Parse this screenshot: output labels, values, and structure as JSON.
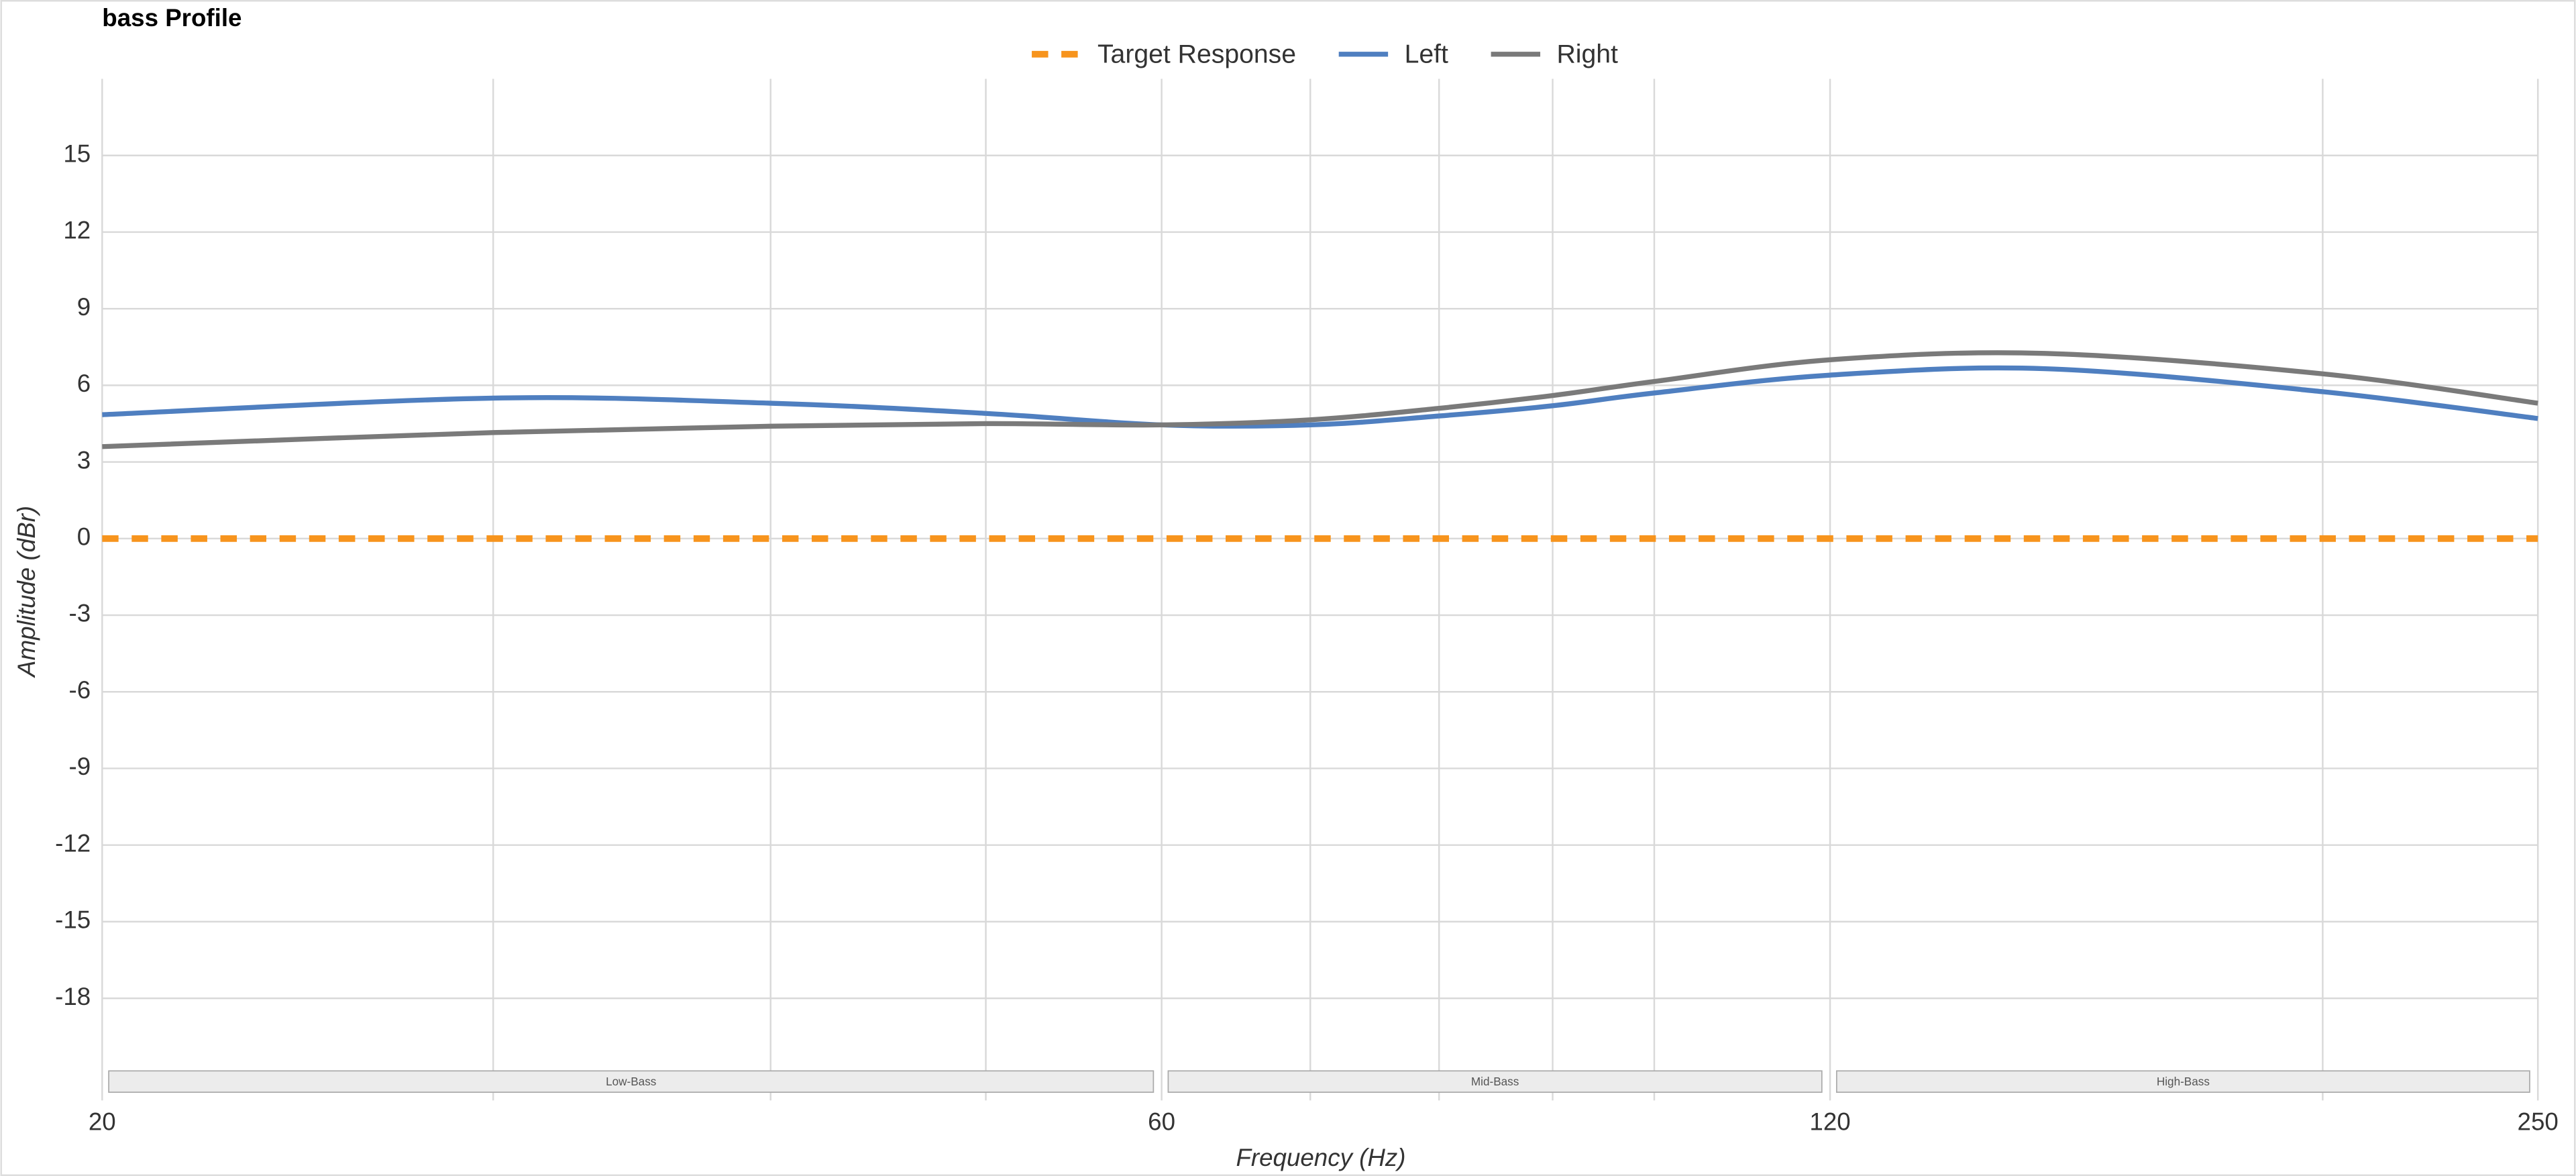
{
  "chart_data": {
    "type": "line",
    "title": "bass Profile",
    "x_label": "Frequency (Hz)",
    "y_label": "Amplitude (dBr)",
    "x": [
      20,
      30,
      40,
      50,
      60,
      70,
      80,
      90,
      100,
      120,
      150,
      200,
      250
    ],
    "series": [
      {
        "name": "Target Response",
        "color": "#f7941d",
        "dashed": true,
        "values": [
          0,
          0,
          0,
          0,
          0,
          0,
          0,
          0,
          0,
          0,
          0,
          0,
          0
        ]
      },
      {
        "name": "Left",
        "color": "#4f7fc0",
        "dashed": false,
        "values": [
          4.85,
          5.5,
          5.3,
          4.9,
          4.45,
          4.45,
          4.8,
          5.2,
          5.7,
          6.4,
          6.65,
          5.75,
          4.7
        ]
      },
      {
        "name": "Right",
        "color": "#7a7a7a",
        "dashed": false,
        "values": [
          3.6,
          4.15,
          4.4,
          4.5,
          4.45,
          4.65,
          5.1,
          5.6,
          6.15,
          7.0,
          7.25,
          6.45,
          5.3
        ]
      }
    ],
    "xlog": true,
    "xlim": [
      20,
      250
    ],
    "xticks": [
      20,
      60,
      120,
      250
    ],
    "x_minor_grid": [
      30,
      40,
      50,
      70,
      80,
      90,
      100,
      200
    ],
    "ylim": [
      -22,
      18
    ],
    "yticks": [
      15,
      12,
      9,
      6,
      3,
      0,
      -3,
      -6,
      -9,
      -12,
      -15,
      -18
    ],
    "grid": true,
    "legend": "top",
    "bands": [
      {
        "label": "Low-Bass",
        "range": [
          20,
          60
        ]
      },
      {
        "label": "Mid-Bass",
        "range": [
          60,
          120
        ]
      },
      {
        "label": "High-Bass",
        "range": [
          120,
          250
        ]
      }
    ]
  }
}
